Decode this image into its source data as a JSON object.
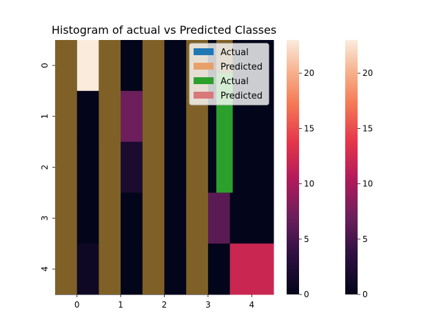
{
  "chart_data": {
    "type": "heatmap",
    "title": "Histogram of actual vs Predicted Classes",
    "xlabel": "",
    "ylabel": "",
    "x_tick_labels": [
      "0",
      "1",
      "2",
      "3",
      "4"
    ],
    "y_tick_labels": [
      "0",
      "1",
      "2",
      "3",
      "4"
    ],
    "value_range": [
      0,
      23
    ],
    "colormap": "rocket",
    "matrix": [
      [
        0,
        23,
        0,
        0,
        0,
        0,
        0,
        0,
        0,
        0
      ],
      [
        0,
        0,
        7,
        7,
        0,
        0,
        0,
        0,
        0,
        0
      ],
      [
        0,
        0,
        2,
        2,
        1,
        0,
        0,
        0,
        0,
        0
      ],
      [
        0,
        0,
        0,
        0,
        0,
        0,
        6,
        6,
        0,
        0
      ],
      [
        0,
        1,
        0,
        0,
        0,
        0,
        0,
        0,
        12,
        12
      ]
    ],
    "overlay_bars": {
      "color": "#7f6127",
      "columns": [
        0,
        2,
        4,
        6
      ],
      "note_color_green": "#2ca02c",
      "green_bar": {
        "column": 7,
        "row_start": 0.65,
        "row_end": 3
      },
      "olive_cap": {
        "column": 7,
        "row_start": 0,
        "row_end": 0.65
      }
    },
    "legend": {
      "placement": "top-right",
      "entries": [
        {
          "label": "Actual",
          "color": "#1f77b4"
        },
        {
          "label": "Predicted",
          "color": "#e8a06a"
        },
        {
          "label": "Actual",
          "color": "#2ca02c"
        },
        {
          "label": "Predicted",
          "color": "#d9787a"
        }
      ]
    },
    "colorbars": [
      {
        "ticks": [
          0,
          5,
          10,
          15,
          20
        ]
      },
      {
        "ticks": [
          0,
          5,
          10,
          15,
          20
        ]
      }
    ]
  }
}
